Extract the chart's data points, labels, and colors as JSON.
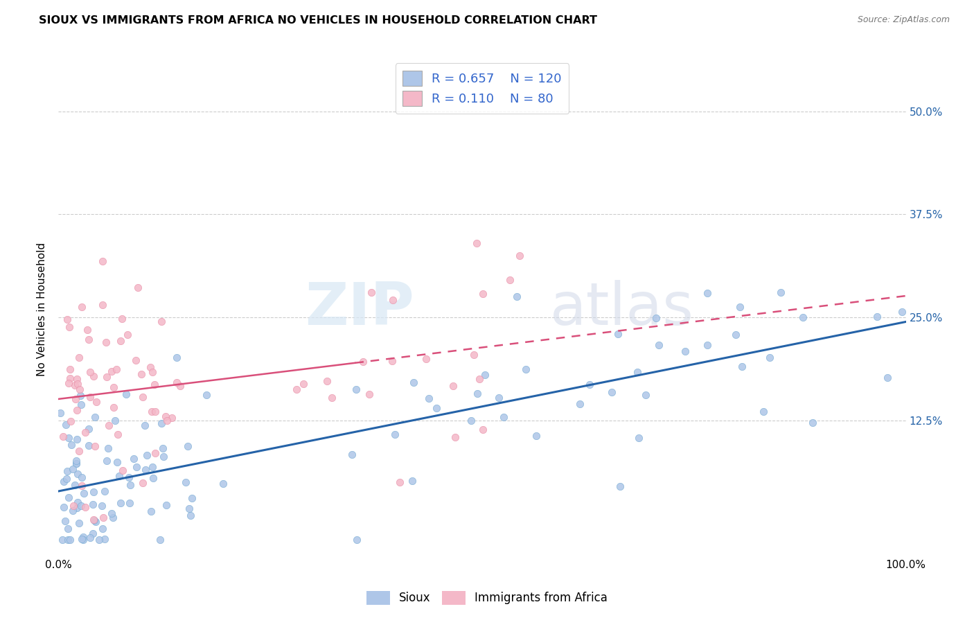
{
  "title": "SIOUX VS IMMIGRANTS FROM AFRICA NO VEHICLES IN HOUSEHOLD CORRELATION CHART",
  "source": "Source: ZipAtlas.com",
  "ylabel": "No Vehicles in Household",
  "ytick_labels": [
    "12.5%",
    "25.0%",
    "37.5%",
    "50.0%"
  ],
  "ytick_values": [
    0.125,
    0.25,
    0.375,
    0.5
  ],
  "xlim": [
    0.0,
    1.0
  ],
  "ylim": [
    -0.04,
    0.56
  ],
  "sioux_color": "#aec6e8",
  "sioux_edge_color": "#7aadd4",
  "sioux_line_color": "#2563a8",
  "africa_color": "#f4b8c8",
  "africa_edge_color": "#e890a8",
  "africa_line_color": "#d94f7a",
  "legend_sioux_R": "0.657",
  "legend_sioux_N": "120",
  "legend_africa_R": "0.110",
  "legend_africa_N": "80",
  "watermark_zip": "ZIP",
  "watermark_atlas": "atlas",
  "legend_text_color": "#3366cc",
  "grid_color": "#cccccc",
  "title_fontsize": 11.5,
  "source_fontsize": 9,
  "tick_fontsize": 11
}
